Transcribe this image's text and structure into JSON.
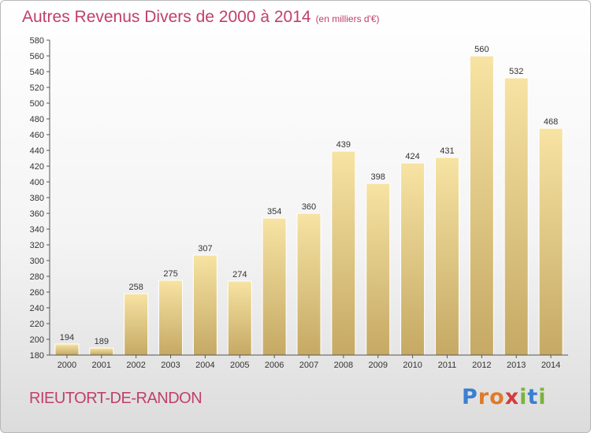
{
  "header": {
    "title": "Autres Revenus Divers de 2000 à 2014",
    "subtitle": "(en milliers d'€)"
  },
  "footer": {
    "commune": "RIEUTORT-DE-RANDON",
    "logo_letters": [
      "P",
      "r",
      "o",
      "x",
      "i",
      "t",
      "i"
    ],
    "logo_colors": [
      "#3a7fd0",
      "#e07a2a",
      "#e07a2a",
      "#d23c3c",
      "#7ab33c",
      "#3a7fd0",
      "#7ab33c"
    ]
  },
  "colors": {
    "title": "#c0406a",
    "bar_top": "#f7e3a3",
    "bar_bottom": "#c5a964",
    "axis": "#555555",
    "grid": "#dddddd"
  },
  "chart_data": {
    "type": "bar",
    "title": "Autres Revenus Divers de 2000 à 2014",
    "categories": [
      "2000",
      "2001",
      "2002",
      "2003",
      "2004",
      "2005",
      "2006",
      "2007",
      "2008",
      "2009",
      "2010",
      "2011",
      "2012",
      "2013",
      "2014"
    ],
    "values": [
      194,
      189,
      258,
      275,
      307,
      274,
      354,
      360,
      439,
      398,
      424,
      431,
      560,
      532,
      468
    ],
    "ylim": [
      180,
      580
    ],
    "ytick_step": 20,
    "grid": false
  }
}
